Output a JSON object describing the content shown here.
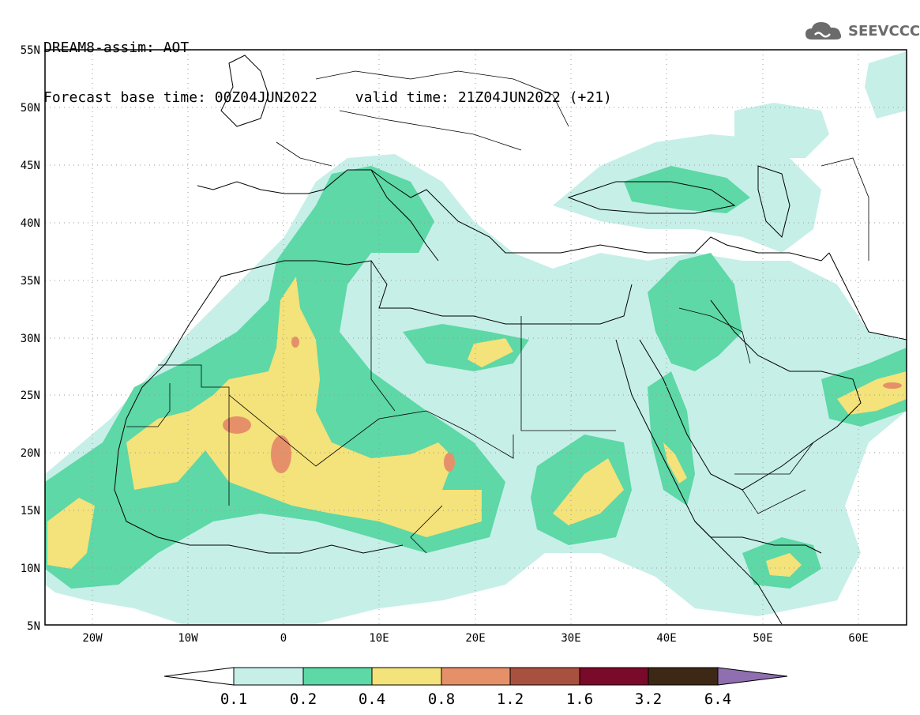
{
  "title": {
    "line1": "DREAM8-assim: AOT",
    "base_time": "Forecast base time: 00Z04JUN2022",
    "valid_time": "valid time: 21Z04JUN2022 (+21)"
  },
  "logo": {
    "text": "SEEVCCC",
    "icon": "cloud-icon"
  },
  "map": {
    "lon_range": [
      -25,
      65
    ],
    "lat_range": [
      5,
      55
    ],
    "lat_labels": [
      "55N",
      "50N",
      "45N",
      "40N",
      "35N",
      "30N",
      "25N",
      "20N",
      "15N",
      "10N",
      "5N"
    ],
    "lon_labels": [
      "20W",
      "10W",
      "0",
      "10E",
      "20E",
      "30E",
      "40E",
      "50E",
      "60E"
    ]
  },
  "colorbar": {
    "levels": [
      "0.1",
      "0.2",
      "0.4",
      "0.8",
      "1.2",
      "1.6",
      "3.2",
      "6.4"
    ],
    "colors": [
      "#c6efe8",
      "#5dd8a6",
      "#f4e27a",
      "#e6906a",
      "#a9513f",
      "#7a0a2a",
      "#3d2816",
      "#8f6fb0"
    ],
    "under_color": "#ffffff",
    "over_color": "#8f6fb0"
  },
  "palette": {
    "light": "#c6efe8",
    "medium": "#5dd8a6",
    "yellow": "#f4e27a",
    "orange": "#e6906a",
    "border": "#000000"
  }
}
